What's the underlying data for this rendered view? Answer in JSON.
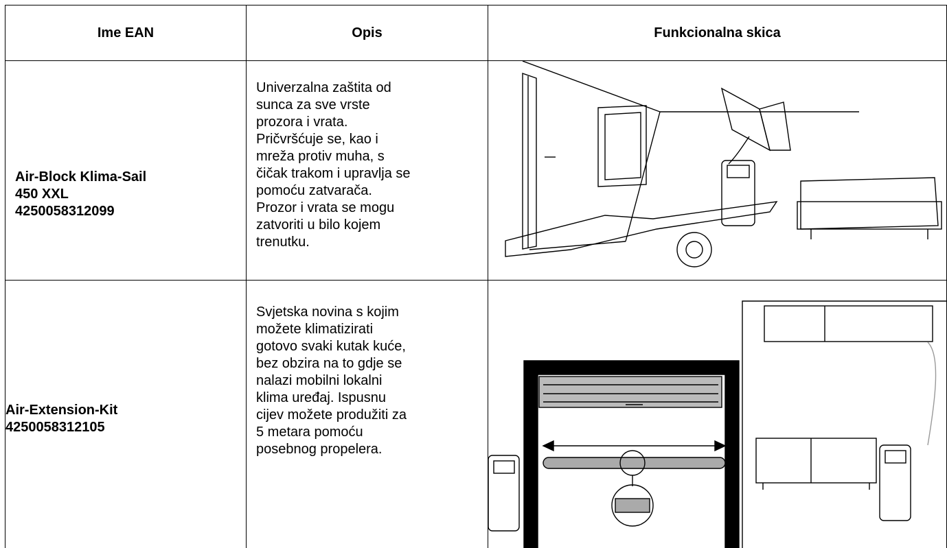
{
  "table": {
    "header": [
      "Ime EAN",
      "Opis",
      "Funkcionalna skica"
    ],
    "rows": [
      {
        "name": [
          "Air-Block Klima-Sail",
          "450 XXL",
          "4250058312099"
        ],
        "description": [
          "Univerzalna zaštita od",
          "sunca za sve vrste",
          "prozora i vrata.",
          "Pričvršćuje se, kao i",
          "mreža protiv muha, s",
          "čičak trakom i upravlja se",
          "pomoću zatvarača.",
          "Prozor i vrata se mogu",
          "zatvoriti u bilo kojem",
          "trenutku."
        ]
      },
      {
        "name": [
          "Air-Extension-Kit",
          "4250058312105"
        ],
        "description": [
          "Svjetska novina s kojim",
          "možete klimatizirati",
          "gotovo svaki kutak kuće,",
          "bez obzira na to gdje se",
          "nalazi mobilni lokalni",
          "klima uređaj. Ispusnu",
          "cijev možete produžiti za",
          "5 metara pomoću",
          "posebnog propelera."
        ]
      }
    ]
  }
}
